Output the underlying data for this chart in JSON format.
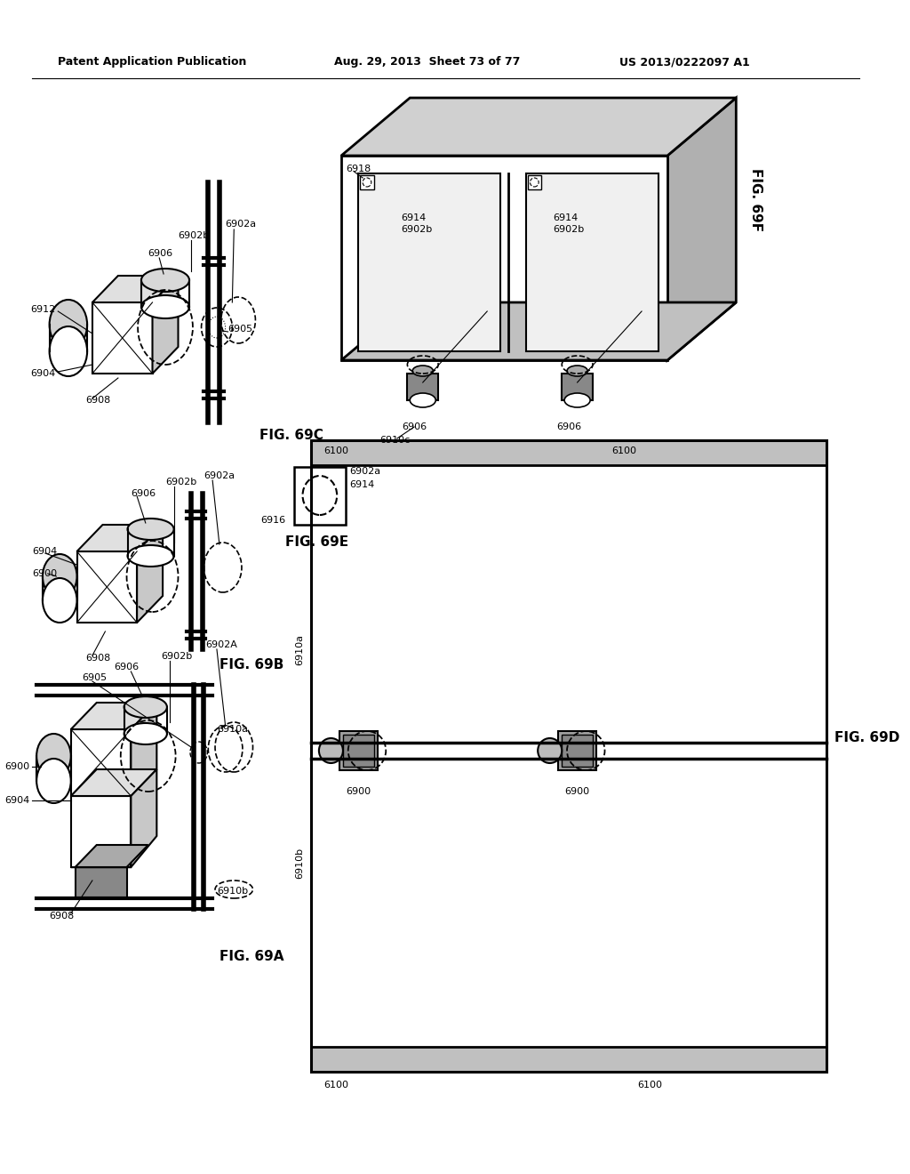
{
  "bg_color": "#ffffff",
  "header_left": "Patent Application Publication",
  "header_center": "Aug. 29, 2013  Sheet 73 of 77",
  "header_right": "US 2013/0222097 A1",
  "line_color": "#000000"
}
